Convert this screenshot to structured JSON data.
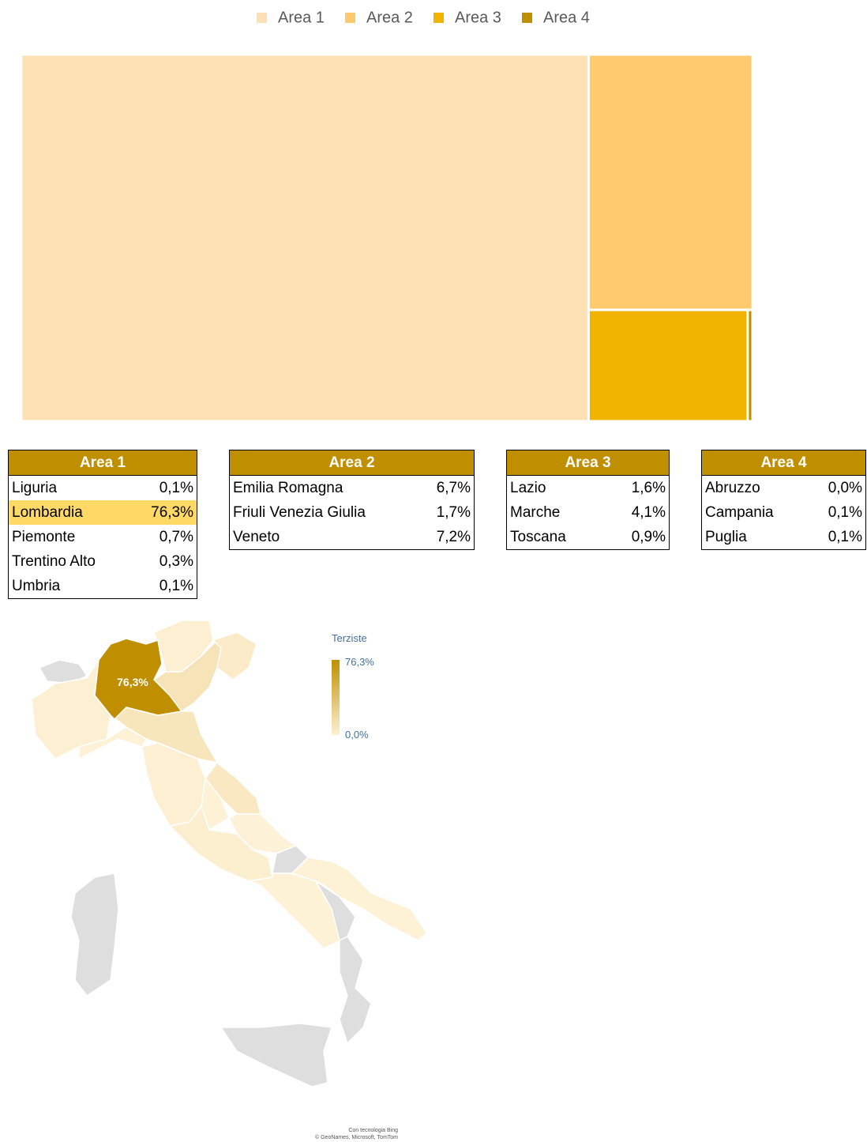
{
  "chart_data": {
    "type": "treemap",
    "series": [
      {
        "name": "Area 1",
        "color": "#fde0b3",
        "value": 77.5
      },
      {
        "name": "Area 2",
        "color": "#ffca6e",
        "value": 15.6
      },
      {
        "name": "Area 3",
        "color": "#f0b400",
        "value": 6.6
      },
      {
        "name": "Area 4",
        "color": "#bf8f00",
        "value": 0.2
      }
    ]
  },
  "tables": [
    {
      "title": "Area 1",
      "rows": [
        [
          "Liguria",
          "0,1%"
        ],
        [
          "Lombardia",
          "76,3%"
        ],
        [
          "Piemonte",
          "0,7%"
        ],
        [
          "Trentino Alto",
          "0,3%"
        ],
        [
          "Umbria",
          "0,1%"
        ]
      ]
    },
    {
      "title": "Area 2",
      "rows": [
        [
          "Emilia Romagna",
          "6,7%"
        ],
        [
          "Friuli Venezia Giulia",
          "1,7%"
        ],
        [
          "Veneto",
          "7,2%"
        ]
      ]
    },
    {
      "title": "Area 3",
      "rows": [
        [
          "Lazio",
          "1,6%"
        ],
        [
          "Marche",
          "4,1%"
        ],
        [
          "Toscana",
          "0,9%"
        ]
      ]
    },
    {
      "title": "Area 4",
      "rows": [
        [
          "Abruzzo",
          "0,0%"
        ],
        [
          "Campania",
          "0,1%"
        ],
        [
          "Puglia",
          "0,1%"
        ]
      ]
    }
  ],
  "map": {
    "legend_title": "Terziste",
    "legend_max": "76,3%",
    "legend_min": "0,0%",
    "region_label": "76,3%",
    "credits": [
      "Con tecnologia Bing",
      "© GeoNames, Microsoft, TomTom"
    ]
  }
}
